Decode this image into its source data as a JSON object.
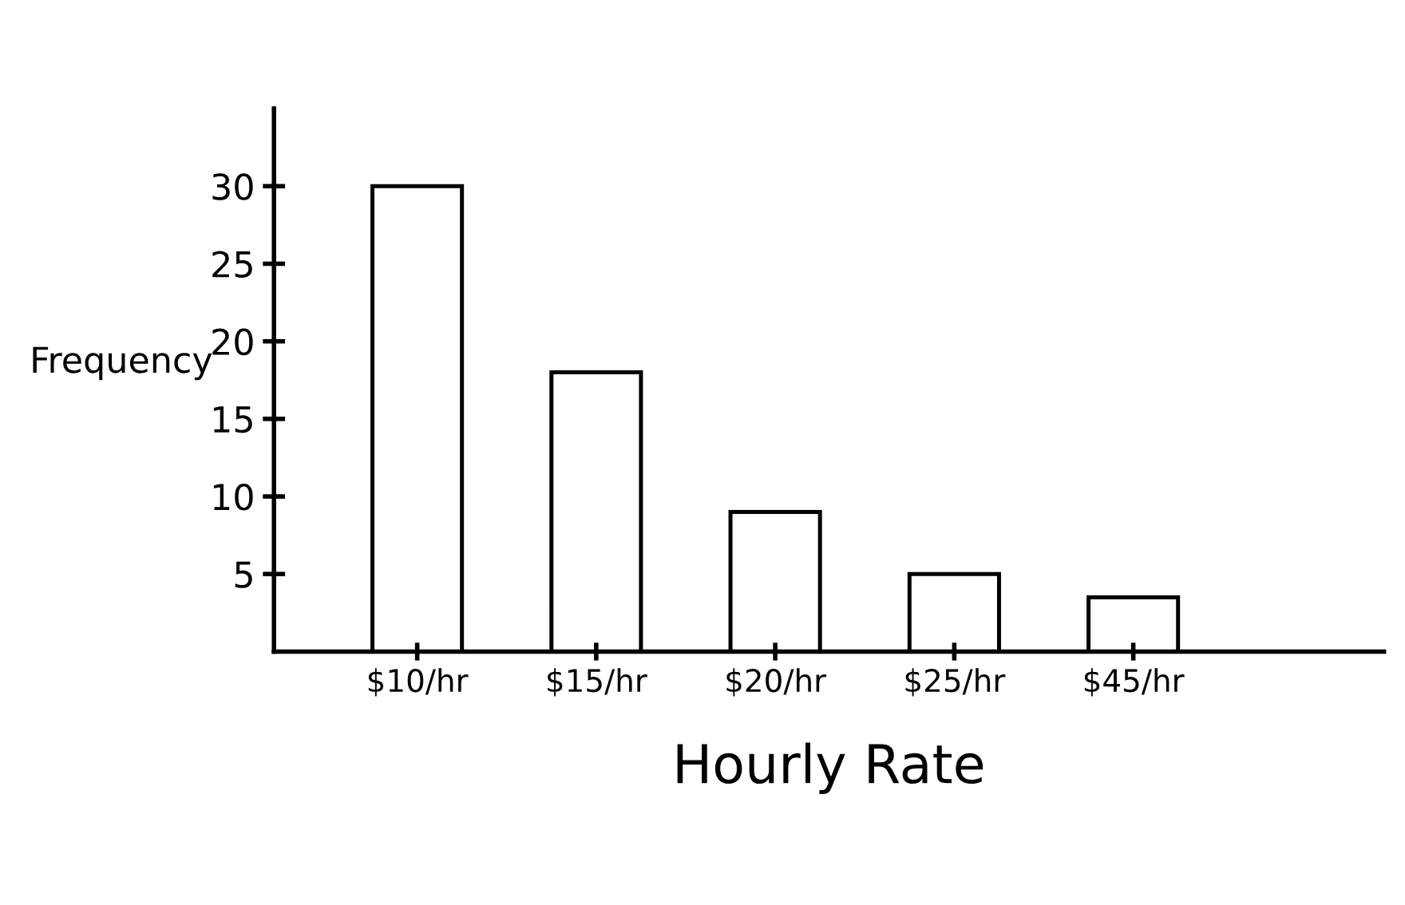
{
  "chart_data": {
    "type": "bar",
    "xlabel": "Hourly Rate",
    "ylabel": "Frequency",
    "categories": [
      "$10/hr",
      "$15/hr",
      "$20/hr",
      "$25/hr",
      "$45/hr"
    ],
    "values": [
      30,
      18,
      9,
      5,
      3.5
    ],
    "color": "#ffffff",
    "ylim": [
      0,
      35
    ],
    "yticks": [
      5,
      10,
      15,
      20,
      25,
      30
    ],
    "grid": false
  }
}
